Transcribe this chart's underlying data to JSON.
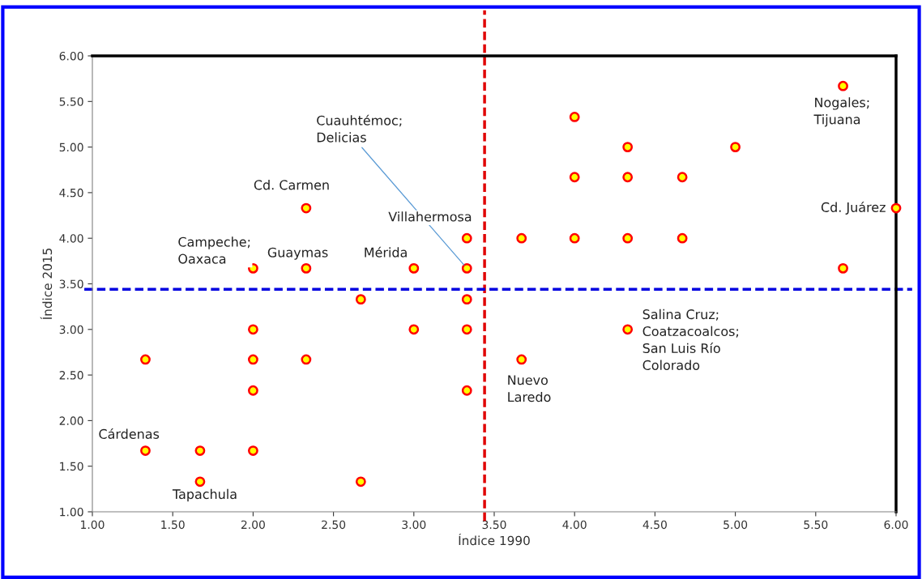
{
  "chart_data": {
    "type": "scatter",
    "xlabel": "Índice 1990",
    "ylabel": "Índice 2015",
    "x": [
      1.33,
      1.33,
      1.67,
      1.67,
      2.0,
      2.0,
      2.0,
      2.0,
      2.0,
      2.33,
      2.33,
      2.33,
      2.67,
      2.67,
      3.0,
      3.0,
      3.33,
      3.33,
      3.33,
      3.33,
      3.33,
      3.67,
      3.67,
      4.0,
      4.0,
      4.0,
      4.33,
      4.33,
      4.33,
      4.33,
      4.67,
      4.67,
      5.0,
      5.67,
      5.67,
      6.0
    ],
    "values": [
      2.67,
      1.67,
      1.67,
      1.33,
      3.67,
      3.0,
      2.67,
      2.33,
      1.67,
      4.33,
      3.67,
      2.67,
      3.33,
      1.33,
      3.67,
      3.0,
      4.0,
      3.67,
      3.33,
      3.0,
      2.33,
      4.0,
      2.67,
      5.33,
      4.67,
      4.0,
      5.0,
      4.67,
      4.0,
      3.0,
      4.67,
      4.0,
      5.0,
      5.67,
      3.67,
      4.33
    ],
    "color": "#ffff00",
    "marker": "circle",
    "grid": false,
    "legend": false,
    "xlim": [
      1.0,
      6.0
    ],
    "xticks": [
      {
        "value": 1.0,
        "label": "1.00"
      },
      {
        "value": 1.5,
        "label": "1.50"
      },
      {
        "value": 2.0,
        "label": "2.00"
      },
      {
        "value": 2.5,
        "label": "2.50"
      },
      {
        "value": 3.0,
        "label": "3.00"
      },
      {
        "value": 3.5,
        "label": "3.50"
      },
      {
        "value": 4.0,
        "label": "4.00"
      },
      {
        "value": 4.5,
        "label": "4.50"
      },
      {
        "value": 5.0,
        "label": "5.00"
      },
      {
        "value": 5.5,
        "label": "5.50"
      },
      {
        "value": 6.0,
        "label": "6.00"
      }
    ],
    "ylim": [
      1.0,
      6.0
    ],
    "yticks": [
      {
        "value": 1.0,
        "label": "1.00"
      },
      {
        "value": 1.5,
        "label": "1.50"
      },
      {
        "value": 2.0,
        "label": "2.00"
      },
      {
        "value": 2.5,
        "label": "2.50"
      },
      {
        "value": 3.0,
        "label": "3.00"
      },
      {
        "value": 3.5,
        "label": "3.50"
      },
      {
        "value": 4.0,
        "label": "4.00"
      },
      {
        "value": 4.5,
        "label": "4.50"
      },
      {
        "value": 5.0,
        "label": "5.00"
      },
      {
        "value": 5.5,
        "label": "5.50"
      },
      {
        "value": 6.0,
        "label": "6.00"
      }
    ],
    "ref_lines": [
      {
        "axis": "x",
        "value": 3.44,
        "color": "#e00000",
        "line_style": "dashed"
      },
      {
        "axis": "y",
        "value": 3.44,
        "color": "#0000e0",
        "line_style": "dashed"
      }
    ],
    "annotations": [
      {
        "text": "Nogales;\nTijuana",
        "x": 5.67,
        "y": 5.67
      },
      {
        "text": "Cd. Juárez",
        "x": 6.0,
        "y": 4.33
      },
      {
        "text": "Cd. Carmen",
        "x": 2.33,
        "y": 4.33
      },
      {
        "text": "Campeche;\nOaxaca",
        "x": 2.0,
        "y": 3.67
      },
      {
        "text": "Guaymas",
        "x": 2.33,
        "y": 3.67
      },
      {
        "text": "Mérida",
        "x": 3.0,
        "y": 3.67
      },
      {
        "text": "Villahermosa",
        "x": 3.33,
        "y": 4.0
      },
      {
        "text": "Cuauhtémoc;\nDelicias",
        "x": 3.33,
        "y": 3.67
      },
      {
        "text": "Salina Cruz;\nCoatzacoalcos;\nSan Luis Río\nColorado",
        "x": 4.33,
        "y": 3.0
      },
      {
        "text": "Nuevo\nLaredo",
        "x": 3.67,
        "y": 2.67
      },
      {
        "text": "Cárdenas",
        "x": 1.33,
        "y": 1.67
      },
      {
        "text": "Tapachula",
        "x": 1.67,
        "y": 1.33
      }
    ]
  }
}
